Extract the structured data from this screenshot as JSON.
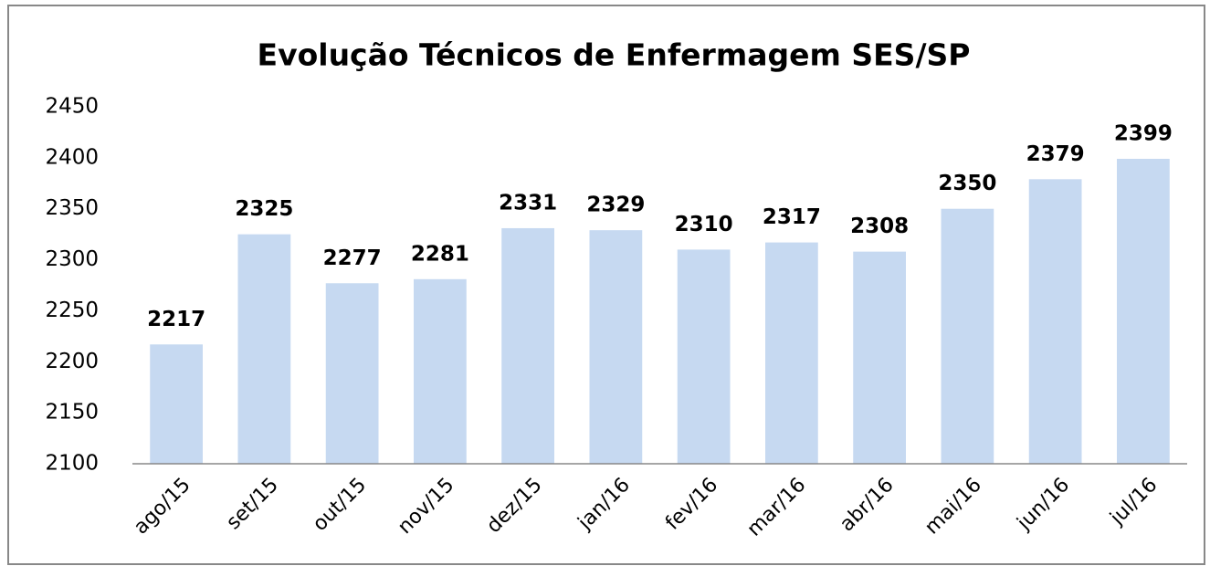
{
  "chart_data": {
    "type": "bar",
    "title": "Evolução Técnicos de Enfermagem SES/SP",
    "categories": [
      "ago/15",
      "set/15",
      "out/15",
      "nov/15",
      "dez/15",
      "jan/16",
      "fev/16",
      "mar/16",
      "abr/16",
      "mai/16",
      "jun/16",
      "jul/16"
    ],
    "values": [
      2217,
      2325,
      2277,
      2281,
      2331,
      2329,
      2310,
      2317,
      2308,
      2350,
      2379,
      2399
    ],
    "color": "#c6d9f1",
    "ylim": [
      2100,
      2450
    ],
    "yticks": [
      2100,
      2150,
      2200,
      2250,
      2300,
      2350,
      2400,
      2450
    ],
    "grid": false
  }
}
